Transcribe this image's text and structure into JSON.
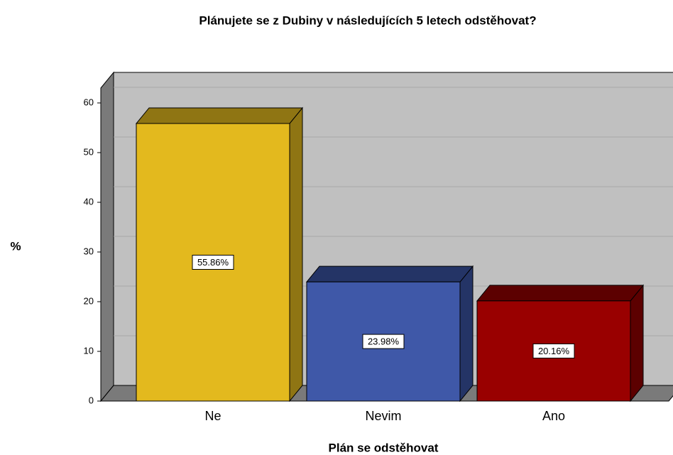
{
  "chart_data": {
    "type": "bar3d",
    "title": "Plánujete se z Dubiny v následujících 5 letech odstěhovat?",
    "x_label": "Plán se odstěhovat",
    "y_label": "%",
    "categories": [
      "Ne",
      "Nevim",
      "Ano"
    ],
    "values": [
      55.86,
      23.98,
      20.16
    ],
    "value_labels": [
      "55.86%",
      "23.98%",
      "20.16%"
    ],
    "colors": [
      "#e3b91e",
      "#3f58a8",
      "#990000"
    ],
    "top_colors": [
      "#8f7513",
      "#243466",
      "#5c0000"
    ],
    "ylim": [
      0,
      63
    ],
    "yticks": [
      0,
      10,
      20,
      30,
      40,
      50,
      60
    ],
    "grid": true
  }
}
